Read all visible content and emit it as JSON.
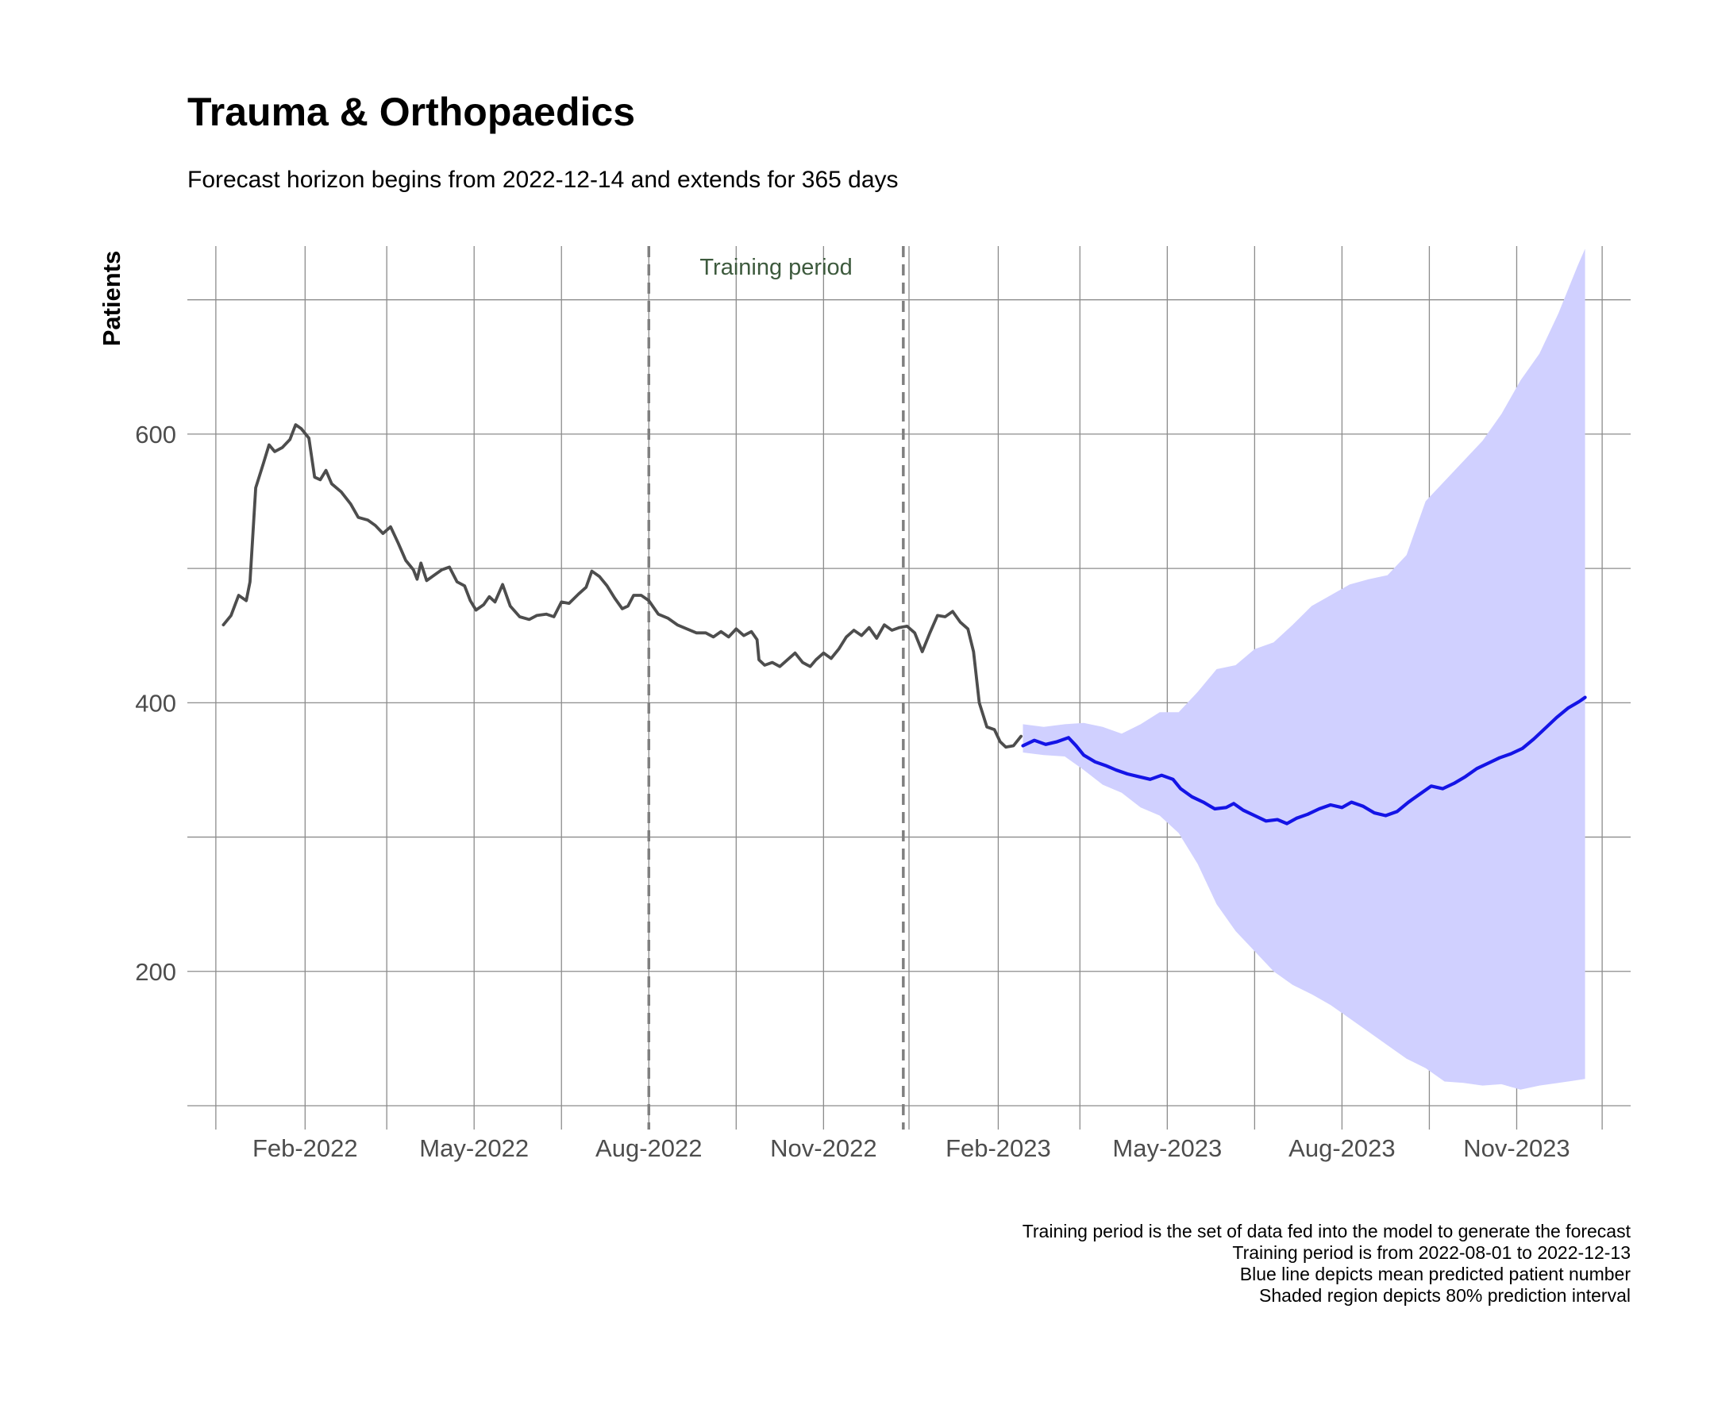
{
  "chart_data": {
    "type": "line",
    "title": "Trauma & Orthopaedics",
    "subtitle": "Forecast horizon begins from 2022-12-14 and extends for 365 days",
    "xlabel": "",
    "ylabel": "Patients",
    "xlim": [
      "2021-12-01",
      "2023-12-31"
    ],
    "ylim": [
      100,
      740
    ],
    "x_ticks": [
      {
        "date": "2022-02-01",
        "label": "Feb-2022"
      },
      {
        "date": "2022-05-01",
        "label": "May-2022"
      },
      {
        "date": "2022-08-01",
        "label": "Aug-2022"
      },
      {
        "date": "2022-11-01",
        "label": "Nov-2022"
      },
      {
        "date": "2023-02-01",
        "label": "Feb-2023"
      },
      {
        "date": "2023-05-01",
        "label": "May-2023"
      },
      {
        "date": "2023-08-01",
        "label": "Aug-2023"
      },
      {
        "date": "2023-11-01",
        "label": "Nov-2023"
      }
    ],
    "x_minor_grid": [
      "2021-12-16",
      "2022-03-16",
      "2022-06-16",
      "2022-09-16",
      "2022-12-16",
      "2023-03-16",
      "2023-06-16",
      "2023-09-16",
      "2023-12-16"
    ],
    "y_ticks": [
      200,
      400,
      600
    ],
    "y_minor_grid": [
      100,
      300,
      500,
      700
    ],
    "grid": true,
    "legend": "none",
    "training_period": {
      "start": "2022-08-01",
      "end": "2022-12-13",
      "label": "Training period"
    },
    "series": [
      {
        "role": "observed",
        "color": "#4d4d4d",
        "points": [
          [
            "2021-12-20",
            458
          ],
          [
            "2021-12-24",
            465
          ],
          [
            "2021-12-28",
            480
          ],
          [
            "2022-01-01",
            476
          ],
          [
            "2022-01-03",
            490
          ],
          [
            "2022-01-06",
            560
          ],
          [
            "2022-01-10",
            578
          ],
          [
            "2022-01-13",
            592
          ],
          [
            "2022-01-16",
            587
          ],
          [
            "2022-01-20",
            590
          ],
          [
            "2022-01-24",
            596
          ],
          [
            "2022-01-27",
            607
          ],
          [
            "2022-01-30",
            604
          ],
          [
            "2022-02-03",
            597
          ],
          [
            "2022-02-06",
            568
          ],
          [
            "2022-02-09",
            566
          ],
          [
            "2022-02-12",
            573
          ],
          [
            "2022-02-15",
            563
          ],
          [
            "2022-02-20",
            557
          ],
          [
            "2022-02-25",
            548
          ],
          [
            "2022-03-01",
            538
          ],
          [
            "2022-03-06",
            536
          ],
          [
            "2022-03-10",
            532
          ],
          [
            "2022-03-14",
            526
          ],
          [
            "2022-03-18",
            531
          ],
          [
            "2022-03-22",
            519
          ],
          [
            "2022-03-26",
            506
          ],
          [
            "2022-03-30",
            499
          ],
          [
            "2022-04-01",
            492
          ],
          [
            "2022-04-03",
            504
          ],
          [
            "2022-04-06",
            491
          ],
          [
            "2022-04-10",
            495
          ],
          [
            "2022-04-14",
            499
          ],
          [
            "2022-04-18",
            501
          ],
          [
            "2022-04-22",
            490
          ],
          [
            "2022-04-26",
            487
          ],
          [
            "2022-04-29",
            476
          ],
          [
            "2022-05-02",
            469
          ],
          [
            "2022-05-06",
            473
          ],
          [
            "2022-05-09",
            479
          ],
          [
            "2022-05-12",
            475
          ],
          [
            "2022-05-16",
            488
          ],
          [
            "2022-05-20",
            472
          ],
          [
            "2022-05-25",
            464
          ],
          [
            "2022-05-30",
            462
          ],
          [
            "2022-06-03",
            465
          ],
          [
            "2022-06-08",
            466
          ],
          [
            "2022-06-12",
            464
          ],
          [
            "2022-06-16",
            475
          ],
          [
            "2022-06-20",
            474
          ],
          [
            "2022-06-25",
            481
          ],
          [
            "2022-06-29",
            486
          ],
          [
            "2022-07-02",
            498
          ],
          [
            "2022-07-06",
            494
          ],
          [
            "2022-07-10",
            487
          ],
          [
            "2022-07-14",
            478
          ],
          [
            "2022-07-18",
            470
          ],
          [
            "2022-07-21",
            472
          ],
          [
            "2022-07-24",
            480
          ],
          [
            "2022-07-28",
            480
          ],
          [
            "2022-08-01",
            476
          ],
          [
            "2022-08-06",
            466
          ],
          [
            "2022-08-11",
            463
          ],
          [
            "2022-08-16",
            458
          ],
          [
            "2022-08-21",
            455
          ],
          [
            "2022-08-26",
            452
          ],
          [
            "2022-08-31",
            452
          ],
          [
            "2022-09-04",
            449
          ],
          [
            "2022-09-08",
            453
          ],
          [
            "2022-09-12",
            449
          ],
          [
            "2022-09-16",
            455
          ],
          [
            "2022-09-20",
            450
          ],
          [
            "2022-09-24",
            453
          ],
          [
            "2022-09-27",
            447
          ],
          [
            "2022-09-28",
            432
          ],
          [
            "2022-10-01",
            428
          ],
          [
            "2022-10-05",
            430
          ],
          [
            "2022-10-09",
            427
          ],
          [
            "2022-10-13",
            432
          ],
          [
            "2022-10-17",
            437
          ],
          [
            "2022-10-21",
            430
          ],
          [
            "2022-10-25",
            427
          ],
          [
            "2022-10-28",
            432
          ],
          [
            "2022-11-01",
            437
          ],
          [
            "2022-11-05",
            433
          ],
          [
            "2022-11-09",
            440
          ],
          [
            "2022-11-13",
            449
          ],
          [
            "2022-11-17",
            454
          ],
          [
            "2022-11-21",
            450
          ],
          [
            "2022-11-25",
            456
          ],
          [
            "2022-11-29",
            448
          ],
          [
            "2022-12-03",
            458
          ],
          [
            "2022-12-07",
            454
          ],
          [
            "2022-12-11",
            456
          ],
          [
            "2022-12-15",
            457
          ],
          [
            "2022-12-19",
            452
          ],
          [
            "2022-12-23",
            438
          ],
          [
            "2022-12-27",
            452
          ],
          [
            "2022-12-31",
            465
          ],
          [
            "2023-01-04",
            464
          ],
          [
            "2023-01-08",
            468
          ],
          [
            "2023-01-12",
            460
          ],
          [
            "2023-01-16",
            455
          ],
          [
            "2023-01-19",
            438
          ],
          [
            "2023-01-22",
            400
          ],
          [
            "2023-01-26",
            382
          ],
          [
            "2023-01-30",
            380
          ],
          [
            "2023-02-02",
            371
          ],
          [
            "2023-02-05",
            367
          ],
          [
            "2023-02-09",
            368
          ],
          [
            "2023-02-13",
            375
          ]
        ]
      },
      {
        "role": "forecast-mean",
        "color": "#1414e6",
        "points": [
          [
            "2023-02-14",
            368
          ],
          [
            "2023-02-20",
            372
          ],
          [
            "2023-02-26",
            369
          ],
          [
            "2023-03-04",
            371
          ],
          [
            "2023-03-10",
            374
          ],
          [
            "2023-03-14",
            368
          ],
          [
            "2023-03-18",
            361
          ],
          [
            "2023-03-24",
            356
          ],
          [
            "2023-03-30",
            353
          ],
          [
            "2023-04-04",
            350
          ],
          [
            "2023-04-10",
            347
          ],
          [
            "2023-04-16",
            345
          ],
          [
            "2023-04-22",
            343
          ],
          [
            "2023-04-28",
            346
          ],
          [
            "2023-05-04",
            343
          ],
          [
            "2023-05-08",
            336
          ],
          [
            "2023-05-14",
            330
          ],
          [
            "2023-05-20",
            326
          ],
          [
            "2023-05-26",
            321
          ],
          [
            "2023-06-01",
            322
          ],
          [
            "2023-06-05",
            325
          ],
          [
            "2023-06-10",
            320
          ],
          [
            "2023-06-16",
            316
          ],
          [
            "2023-06-22",
            312
          ],
          [
            "2023-06-28",
            313
          ],
          [
            "2023-07-03",
            310
          ],
          [
            "2023-07-08",
            314
          ],
          [
            "2023-07-14",
            317
          ],
          [
            "2023-07-20",
            321
          ],
          [
            "2023-07-26",
            324
          ],
          [
            "2023-08-01",
            322
          ],
          [
            "2023-08-06",
            326
          ],
          [
            "2023-08-12",
            323
          ],
          [
            "2023-08-18",
            318
          ],
          [
            "2023-08-24",
            316
          ],
          [
            "2023-08-30",
            319
          ],
          [
            "2023-09-05",
            326
          ],
          [
            "2023-09-11",
            332
          ],
          [
            "2023-09-17",
            338
          ],
          [
            "2023-09-23",
            336
          ],
          [
            "2023-09-29",
            340
          ],
          [
            "2023-10-05",
            345
          ],
          [
            "2023-10-11",
            351
          ],
          [
            "2023-10-17",
            355
          ],
          [
            "2023-10-23",
            359
          ],
          [
            "2023-10-29",
            362
          ],
          [
            "2023-11-04",
            366
          ],
          [
            "2023-11-10",
            373
          ],
          [
            "2023-11-16",
            381
          ],
          [
            "2023-11-22",
            389
          ],
          [
            "2023-11-28",
            396
          ],
          [
            "2023-12-04",
            401
          ],
          [
            "2023-12-07",
            404
          ]
        ]
      }
    ],
    "interval": {
      "level": "80%",
      "color": "#d0d0ff",
      "points": [
        [
          "2023-02-14",
          363,
          384
        ],
        [
          "2023-02-25",
          361,
          382
        ],
        [
          "2023-03-08",
          360,
          384
        ],
        [
          "2023-03-18",
          350,
          385
        ],
        [
          "2023-03-28",
          339,
          382
        ],
        [
          "2023-04-07",
          333,
          377
        ],
        [
          "2023-04-17",
          322,
          384
        ],
        [
          "2023-04-27",
          316,
          393
        ],
        [
          "2023-05-07",
          303,
          393
        ],
        [
          "2023-05-17",
          280,
          408
        ],
        [
          "2023-05-27",
          250,
          425
        ],
        [
          "2023-06-06",
          230,
          428
        ],
        [
          "2023-06-16",
          215,
          440
        ],
        [
          "2023-06-26",
          200,
          445
        ],
        [
          "2023-07-06",
          190,
          458
        ],
        [
          "2023-07-16",
          183,
          472
        ],
        [
          "2023-07-26",
          175,
          480
        ],
        [
          "2023-08-05",
          165,
          488
        ],
        [
          "2023-08-15",
          155,
          492
        ],
        [
          "2023-08-25",
          145,
          495
        ],
        [
          "2023-09-04",
          135,
          510
        ],
        [
          "2023-09-14",
          128,
          550
        ],
        [
          "2023-09-24",
          118,
          565
        ],
        [
          "2023-10-04",
          117,
          580
        ],
        [
          "2023-10-14",
          115,
          595
        ],
        [
          "2023-10-24",
          116,
          615
        ],
        [
          "2023-11-03",
          112,
          640
        ],
        [
          "2023-11-13",
          115,
          660
        ],
        [
          "2023-11-23",
          117,
          690
        ],
        [
          "2023-12-03",
          119,
          725
        ],
        [
          "2023-12-07",
          120,
          738
        ]
      ]
    },
    "caption": [
      "Training period is the set of data fed into the model to generate the forecast",
      "Training period is from 2022-08-01 to 2022-12-13",
      "Blue line depicts mean predicted patient number",
      "Shaded region depicts 80% prediction interval"
    ]
  }
}
